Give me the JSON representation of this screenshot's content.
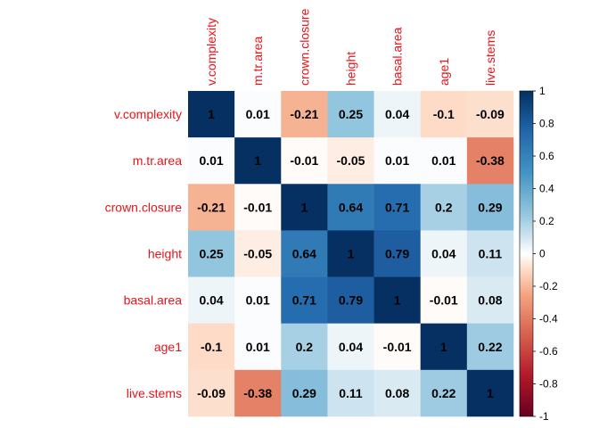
{
  "chart_data": {
    "type": "heatmap",
    "title": "",
    "variables": [
      "v.complexity",
      "m.tr.area",
      "crown.closure",
      "height",
      "basal.area",
      "age1",
      "live.stems"
    ],
    "matrix": [
      [
        1,
        0.01,
        -0.21,
        0.25,
        0.04,
        -0.1,
        -0.09
      ],
      [
        0.01,
        1,
        -0.01,
        -0.05,
        0.01,
        0.01,
        -0.38
      ],
      [
        -0.21,
        -0.01,
        1,
        0.64,
        0.71,
        0.2,
        0.29
      ],
      [
        0.25,
        -0.05,
        0.64,
        1,
        0.79,
        0.04,
        0.11
      ],
      [
        0.04,
        0.01,
        0.71,
        0.79,
        1,
        -0.01,
        0.08
      ],
      [
        -0.1,
        0.01,
        0.2,
        0.04,
        -0.01,
        1,
        0.22
      ],
      [
        -0.09,
        -0.38,
        0.29,
        0.11,
        0.08,
        0.22,
        1
      ]
    ],
    "cell_labels": [
      [
        "1",
        "0.01",
        "-0.21",
        "0.25",
        "0.04",
        "-0.1",
        "-0.09"
      ],
      [
        "0.01",
        "1",
        "-0.01",
        "-0.05",
        "0.01",
        "0.01",
        "-0.38"
      ],
      [
        "-0.21",
        "-0.01",
        "1",
        "0.64",
        "0.71",
        "0.2",
        "0.29"
      ],
      [
        "0.25",
        "-0.05",
        "0.64",
        "1",
        "0.79",
        "0.04",
        "0.11"
      ],
      [
        "0.04",
        "0.01",
        "0.71",
        "0.79",
        "1",
        "-0.01",
        "0.08"
      ],
      [
        "-0.1",
        "0.01",
        "0.2",
        "0.04",
        "-0.01",
        "1",
        "0.22"
      ],
      [
        "-0.09",
        "-0.38",
        "0.29",
        "0.11",
        "0.08",
        "0.22",
        "1"
      ]
    ],
    "colorbar": {
      "range": [
        -1,
        1
      ],
      "ticks": [
        "1",
        "0.8",
        "0.6",
        "0.4",
        "0.2",
        "0",
        "-0.2",
        "-0.4",
        "-0.6",
        "-0.8",
        "-1"
      ],
      "tick_values": [
        1,
        0.8,
        0.6,
        0.4,
        0.2,
        0,
        -0.2,
        -0.4,
        -0.6,
        -0.8,
        -1
      ],
      "stops": [
        {
          "value": -1,
          "color": "#67001F"
        },
        {
          "value": -0.75,
          "color": "#B2182B"
        },
        {
          "value": -0.5,
          "color": "#D6604D"
        },
        {
          "value": -0.25,
          "color": "#F4A582"
        },
        {
          "value": -0.1,
          "color": "#FDDBC7"
        },
        {
          "value": 0,
          "color": "#FFFFFF"
        },
        {
          "value": 0.1,
          "color": "#D1E5F0"
        },
        {
          "value": 0.25,
          "color": "#92C5DE"
        },
        {
          "value": 0.5,
          "color": "#4393C3"
        },
        {
          "value": 0.75,
          "color": "#2166AC"
        },
        {
          "value": 1,
          "color": "#053061"
        }
      ],
      "placement": "right"
    },
    "label_color": "#E8141A",
    "grid": false
  }
}
